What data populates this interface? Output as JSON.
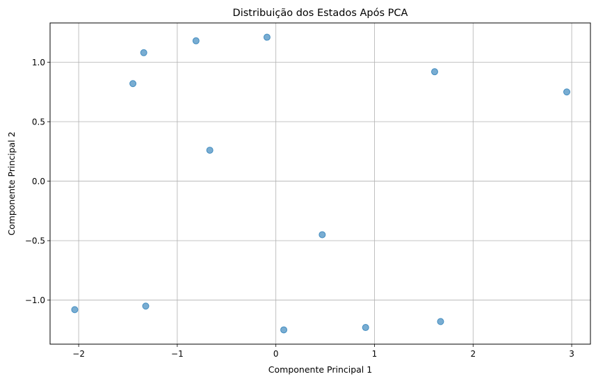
{
  "chart_data": {
    "type": "scatter",
    "title": "Distribuição dos Estados Após PCA",
    "xlabel": "Componente Principal 1",
    "ylabel": "Componente Principal 2",
    "xlim": [
      -2.29,
      3.19
    ],
    "ylim": [
      -1.37,
      1.33
    ],
    "xticks": [
      -2,
      -1,
      0,
      1,
      2,
      3
    ],
    "yticks": [
      -1.0,
      -0.5,
      0.0,
      0.5,
      1.0
    ],
    "xtick_labels": [
      "−2",
      "−1",
      "0",
      "1",
      "2",
      "3"
    ],
    "ytick_labels": [
      "−1.0",
      "−0.5",
      "0.0",
      "0.5",
      "1.0"
    ],
    "grid": true,
    "marker_color": "#1f77b4",
    "marker_alpha": 0.6,
    "points": [
      {
        "x": -1.34,
        "y": 1.08
      },
      {
        "x": -1.45,
        "y": 0.82
      },
      {
        "x": -0.81,
        "y": 1.18
      },
      {
        "x": -0.09,
        "y": 1.21
      },
      {
        "x": -0.67,
        "y": 0.26
      },
      {
        "x": 1.61,
        "y": 0.92
      },
      {
        "x": 2.95,
        "y": 0.75
      },
      {
        "x": 0.47,
        "y": -0.45
      },
      {
        "x": -2.04,
        "y": -1.08
      },
      {
        "x": -1.32,
        "y": -1.05
      },
      {
        "x": 0.08,
        "y": -1.25
      },
      {
        "x": 0.91,
        "y": -1.23
      },
      {
        "x": 1.67,
        "y": -1.18
      }
    ]
  }
}
